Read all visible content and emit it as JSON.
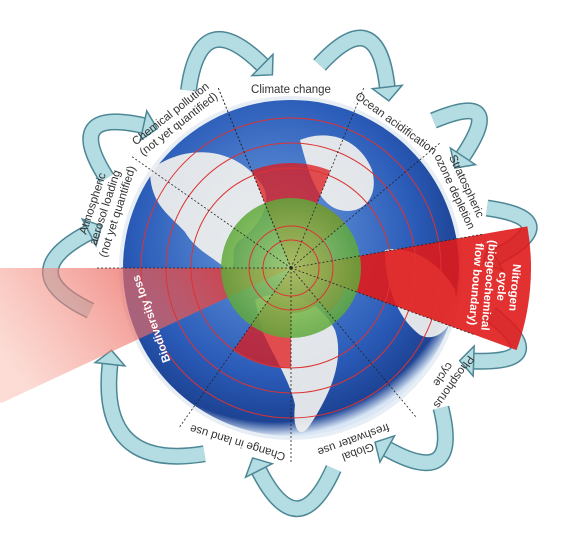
{
  "nodes": [
    {
      "lines": [
        "Climate change"
      ]
    },
    {
      "lines": [
        "Ocean acidification"
      ]
    },
    {
      "lines": [
        "Stratospheric",
        "ozone depletion"
      ]
    },
    {
      "lines": [
        "Nitrogen",
        "cycle",
        "(biogeochemical",
        "flow boundary)"
      ]
    },
    {
      "lines": [
        "Phosphorus",
        "cycle"
      ]
    },
    {
      "lines": [
        "Global",
        "freshwater use"
      ]
    },
    {
      "lines": [
        "Change in land use"
      ]
    },
    {
      "lines": [
        "Biodiversity loss"
      ]
    },
    {
      "lines": [
        "Atmospheric",
        "aerosol loading",
        "(not yet quantified)"
      ]
    },
    {
      "lines": [
        "Chemical pollution",
        "(not yet quantified)"
      ]
    }
  ]
}
